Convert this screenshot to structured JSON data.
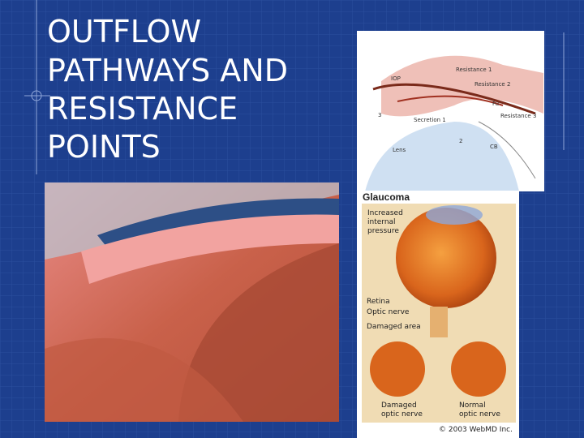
{
  "slide": {
    "title_lines": [
      "OUTFLOW",
      "PATHWAYS AND",
      "RESISTANCE",
      "POINTS"
    ],
    "outflow_diagram": {
      "labels": [
        "Resistance 1",
        "IOP",
        "Resistance 2",
        "Fu",
        "Resistance 3",
        "Secretion 1",
        "3",
        "2",
        "CB",
        "Lens"
      ]
    },
    "glaucoma_panel": {
      "title": "Glaucoma",
      "pressure_label": [
        "Increased",
        "internal",
        "pressure"
      ],
      "retina": "Retina",
      "optic_nerve": "Optic nerve",
      "damaged_area": "Damaged area",
      "damaged_nerve": [
        "Damaged",
        "optic nerve"
      ],
      "normal_nerve": [
        "Normal",
        "optic nerve"
      ],
      "copyright": "© 2003 WebMD Inc."
    }
  }
}
